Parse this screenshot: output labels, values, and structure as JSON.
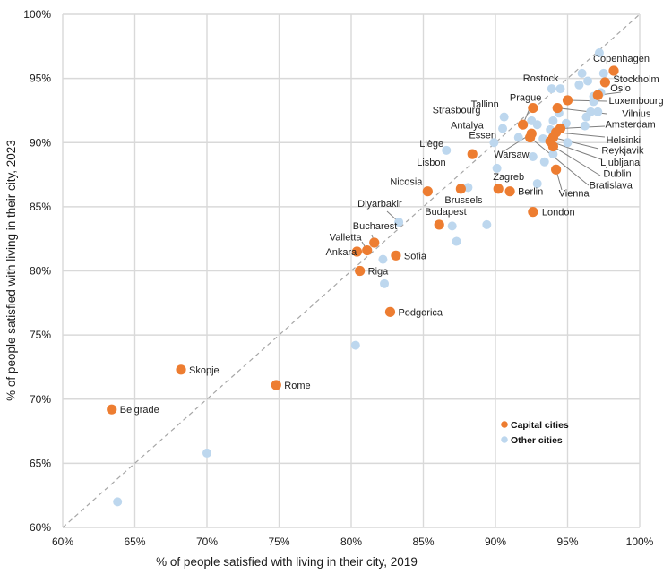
{
  "chart_data": {
    "type": "scatter",
    "title": "",
    "xlabel": "% of people satisfied with living in their city, 2019",
    "ylabel": "% of people satisfied with living in their city, 2023",
    "xlim": [
      60,
      100
    ],
    "ylim": [
      60,
      100
    ],
    "x_ticks": [
      "60%",
      "65%",
      "70%",
      "75%",
      "80%",
      "85%",
      "90%",
      "95%",
      "100%"
    ],
    "y_ticks": [
      "60%",
      "65%",
      "70%",
      "75%",
      "80%",
      "85%",
      "90%",
      "95%",
      "100%"
    ],
    "grid": true,
    "reference_line": "y = x (dashed)",
    "legend_position": "bottom-right",
    "colors": {
      "capital": "#ed7d31",
      "other": "#bdd7ee"
    },
    "series": [
      {
        "name": "Capital cities",
        "key": "capital",
        "points": [
          {
            "label": "Copenhagen",
            "x": 98.2,
            "y": 95.6
          },
          {
            "label": "Stockholm",
            "x": 97.6,
            "y": 94.7
          },
          {
            "label": "Oslo",
            "x": 97.1,
            "y": 93.7
          },
          {
            "label": "Luxembourg",
            "x": 95.0,
            "y": 93.3
          },
          {
            "label": "Prague",
            "x": 92.6,
            "y": 92.7
          },
          {
            "label": "Vilnius",
            "x": 94.3,
            "y": 92.7
          },
          {
            "label": "Tallinn",
            "x": 91.9,
            "y": 91.4
          },
          {
            "label": "Amsterdam",
            "x": 94.5,
            "y": 91.1
          },
          {
            "label": "Helsinki",
            "x": 94.2,
            "y": 90.8
          },
          {
            "label": "Warsaw",
            "x": 92.5,
            "y": 90.7
          },
          {
            "label": "Reykjavik",
            "x": 94.0,
            "y": 90.4
          },
          {
            "label": "Ljubljana",
            "x": 93.8,
            "y": 90.1
          },
          {
            "label": "Dublin",
            "x": 94.0,
            "y": 89.7
          },
          {
            "label": "Bratislava",
            "x": 92.4,
            "y": 90.4
          },
          {
            "label": "Vienna",
            "x": 94.2,
            "y": 87.9
          },
          {
            "label": "Lisbon",
            "x": 88.4,
            "y": 89.1
          },
          {
            "label": "Zagreb",
            "x": 90.2,
            "y": 86.4
          },
          {
            "label": "Berlin",
            "x": 91.0,
            "y": 86.2
          },
          {
            "label": "Brussels",
            "x": 87.6,
            "y": 86.4
          },
          {
            "label": "Nicosia",
            "x": 85.3,
            "y": 86.2
          },
          {
            "label": "London",
            "x": 92.6,
            "y": 84.6
          },
          {
            "label": "Budapest",
            "x": 86.1,
            "y": 83.6
          },
          {
            "label": "Bucharest",
            "x": 81.6,
            "y": 82.2
          },
          {
            "label": "Valletta",
            "x": 81.1,
            "y": 81.6
          },
          {
            "label": "Ankara",
            "x": 80.4,
            "y": 81.5
          },
          {
            "label": "Sofia",
            "x": 83.1,
            "y": 81.2
          },
          {
            "label": "Riga",
            "x": 80.6,
            "y": 80.0
          },
          {
            "label": "Podgorica",
            "x": 82.7,
            "y": 76.8
          },
          {
            "label": "Skopje",
            "x": 68.2,
            "y": 72.3
          },
          {
            "label": "Rome",
            "x": 74.8,
            "y": 71.1
          },
          {
            "label": "Belgrade",
            "x": 63.4,
            "y": 69.2
          }
        ]
      },
      {
        "name": "Other cities",
        "key": "other",
        "points": [
          {
            "label": "",
            "x": 97.2,
            "y": 97.0
          },
          {
            "label": "",
            "x": 96.0,
            "y": 95.4
          },
          {
            "label": "",
            "x": 97.5,
            "y": 95.4
          },
          {
            "label": "",
            "x": 96.4,
            "y": 94.8
          },
          {
            "label": "",
            "x": 95.8,
            "y": 94.5
          },
          {
            "label": "Rostock",
            "x": 93.9,
            "y": 94.2
          },
          {
            "label": "",
            "x": 94.5,
            "y": 94.2
          },
          {
            "label": "",
            "x": 97.3,
            "y": 93.9
          },
          {
            "label": "",
            "x": 96.8,
            "y": 93.6
          },
          {
            "label": "",
            "x": 96.8,
            "y": 93.2
          },
          {
            "label": "",
            "x": 94.4,
            "y": 92.3
          },
          {
            "label": "",
            "x": 96.6,
            "y": 92.4
          },
          {
            "label": "",
            "x": 97.1,
            "y": 92.4
          },
          {
            "label": "",
            "x": 96.3,
            "y": 92.0
          },
          {
            "label": "Strasbourg",
            "x": 90.6,
            "y": 92.0
          },
          {
            "label": "",
            "x": 92.5,
            "y": 91.7
          },
          {
            "label": "",
            "x": 92.9,
            "y": 91.4
          },
          {
            "label": "",
            "x": 94.0,
            "y": 91.7
          },
          {
            "label": "",
            "x": 94.9,
            "y": 91.5
          },
          {
            "label": "",
            "x": 96.2,
            "y": 91.3
          },
          {
            "label": "Antalya",
            "x": 90.5,
            "y": 91.1
          },
          {
            "label": "",
            "x": 93.8,
            "y": 91.0
          },
          {
            "label": "",
            "x": 91.6,
            "y": 90.4
          },
          {
            "label": "",
            "x": 93.3,
            "y": 90.3
          },
          {
            "label": "",
            "x": 95.0,
            "y": 90.0
          },
          {
            "label": "Essen",
            "x": 89.9,
            "y": 90.0
          },
          {
            "label": "Liège",
            "x": 86.6,
            "y": 89.4
          },
          {
            "label": "",
            "x": 92.6,
            "y": 88.9
          },
          {
            "label": "",
            "x": 94.0,
            "y": 89.1
          },
          {
            "label": "",
            "x": 93.4,
            "y": 88.5
          },
          {
            "label": "",
            "x": 90.1,
            "y": 88.0
          },
          {
            "label": "",
            "x": 92.9,
            "y": 86.8
          },
          {
            "label": "",
            "x": 88.1,
            "y": 86.5
          },
          {
            "label": "Diyarbakir",
            "x": 83.3,
            "y": 83.8
          },
          {
            "label": "",
            "x": 87.0,
            "y": 83.5
          },
          {
            "label": "",
            "x": 89.4,
            "y": 83.6
          },
          {
            "label": "",
            "x": 87.3,
            "y": 82.3
          },
          {
            "label": "",
            "x": 82.2,
            "y": 80.9
          },
          {
            "label": "",
            "x": 82.3,
            "y": 79.0
          },
          {
            "label": "",
            "x": 80.3,
            "y": 74.2
          },
          {
            "label": "",
            "x": 70.0,
            "y": 65.8
          },
          {
            "label": "",
            "x": 63.8,
            "y": 62.0
          }
        ]
      }
    ]
  }
}
